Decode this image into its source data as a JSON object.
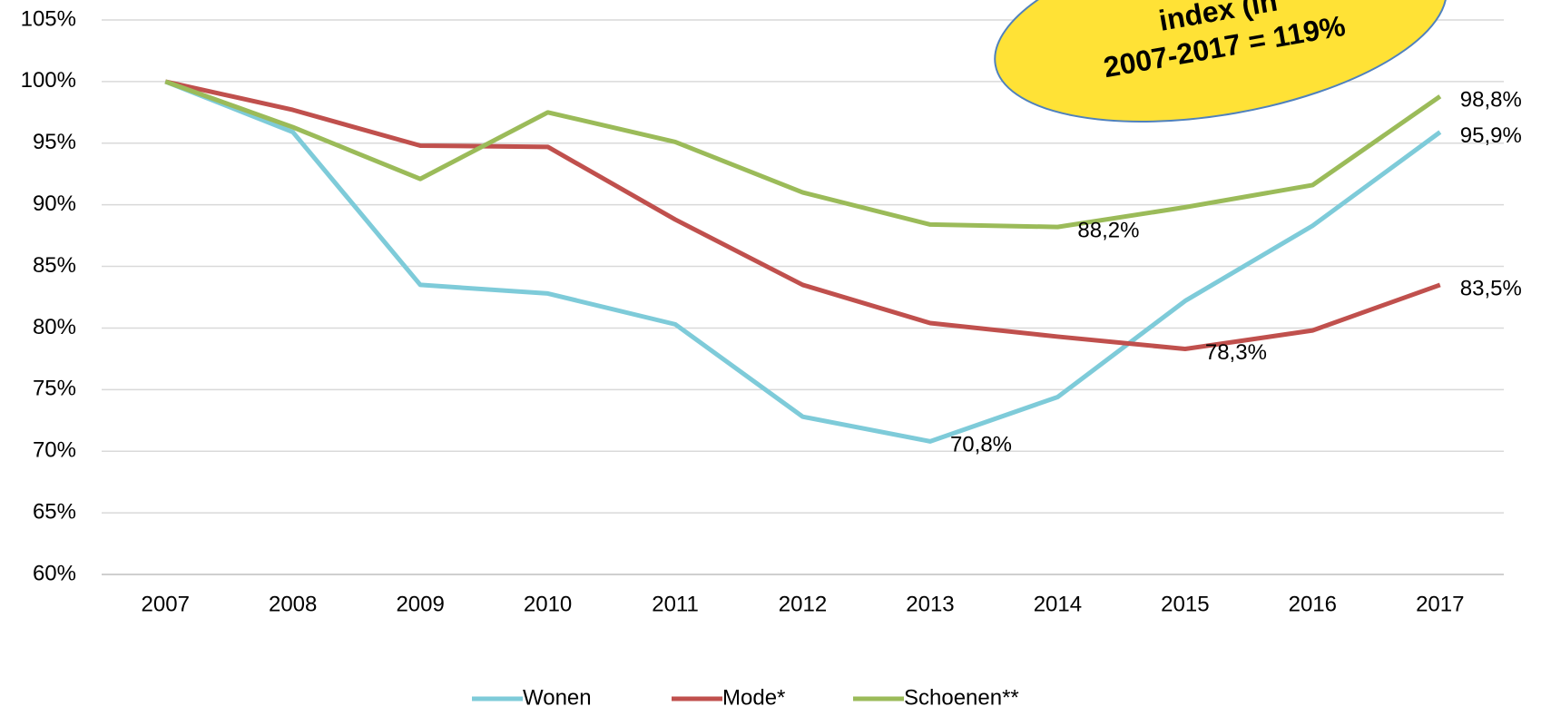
{
  "chart_data": {
    "type": "line",
    "categories": [
      "2007",
      "2008",
      "2009",
      "2010",
      "2011",
      "2012",
      "2013",
      "2014",
      "2015",
      "2016",
      "2017"
    ],
    "series": [
      {
        "name": "Wonen",
        "color": "#7ecbd9",
        "values": [
          100,
          95.9,
          83.5,
          82.8,
          80.3,
          72.8,
          70.8,
          74.4,
          82.2,
          88.3,
          95.9
        ],
        "value_labels": [
          null,
          null,
          null,
          null,
          null,
          null,
          "70,8%",
          null,
          null,
          null,
          "95,9%"
        ]
      },
      {
        "name": "Mode*",
        "color": "#c0504d",
        "values": [
          100,
          97.7,
          94.8,
          94.7,
          88.8,
          83.5,
          80.4,
          79.3,
          78.3,
          79.8,
          83.5
        ],
        "value_labels": [
          null,
          null,
          null,
          null,
          null,
          null,
          null,
          null,
          "78,3%",
          null,
          "83,5%"
        ]
      },
      {
        "name": "Schoenen**",
        "color": "#9bbb59",
        "values": [
          100,
          96.3,
          92.1,
          97.5,
          95.1,
          91.0,
          88.4,
          88.2,
          89.8,
          91.6,
          98.8
        ],
        "value_labels": [
          null,
          null,
          null,
          null,
          null,
          null,
          null,
          "88,2%",
          null,
          null,
          "98,8%"
        ]
      }
    ],
    "ylim": [
      60,
      105
    ],
    "yticks": [
      {
        "value": 60,
        "label": "60%"
      },
      {
        "value": 65,
        "label": "65%"
      },
      {
        "value": 70,
        "label": "70%"
      },
      {
        "value": 75,
        "label": "75%"
      },
      {
        "value": 80,
        "label": "80%"
      },
      {
        "value": 85,
        "label": "85%"
      },
      {
        "value": 90,
        "label": "90%"
      },
      {
        "value": 95,
        "label": "95%"
      },
      {
        "value": 100,
        "label": "100%"
      },
      {
        "value": 105,
        "label": "105%"
      }
    ],
    "grid": true,
    "legend": "bottom",
    "annotation": [
      "index (in",
      "2007-2017 = 119%"
    ]
  }
}
